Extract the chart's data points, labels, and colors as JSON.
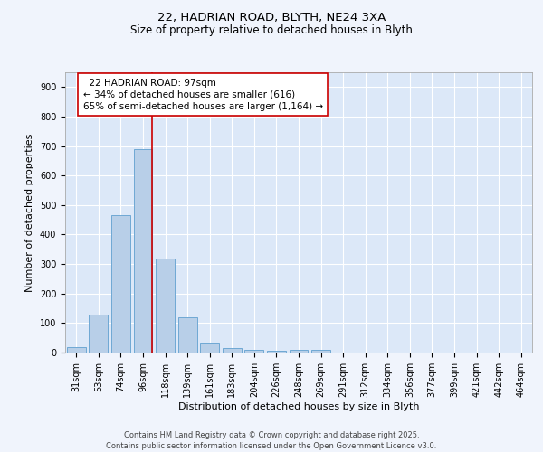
{
  "title_line1": "22, HADRIAN ROAD, BLYTH, NE24 3XA",
  "title_line2": "Size of property relative to detached houses in Blyth",
  "xlabel": "Distribution of detached houses by size in Blyth",
  "ylabel": "Number of detached properties",
  "categories": [
    "31sqm",
    "53sqm",
    "74sqm",
    "96sqm",
    "118sqm",
    "139sqm",
    "161sqm",
    "183sqm",
    "204sqm",
    "226sqm",
    "248sqm",
    "269sqm",
    "291sqm",
    "312sqm",
    "334sqm",
    "356sqm",
    "377sqm",
    "399sqm",
    "421sqm",
    "442sqm",
    "464sqm"
  ],
  "values": [
    17,
    128,
    467,
    690,
    320,
    120,
    35,
    15,
    10,
    5,
    10,
    8,
    0,
    0,
    0,
    0,
    0,
    0,
    0,
    0,
    0
  ],
  "bar_color": "#b8cfe8",
  "bar_edge_color": "#6fa8d4",
  "background_color": "#dce8f8",
  "grid_color": "#ffffff",
  "vline_color": "#cc0000",
  "annotation_text": "  22 HADRIAN ROAD: 97sqm\n← 34% of detached houses are smaller (616)\n65% of semi-detached houses are larger (1,164) →",
  "annotation_box_color": "white",
  "annotation_border_color": "#cc0000",
  "ylim": [
    0,
    950
  ],
  "yticks": [
    0,
    100,
    200,
    300,
    400,
    500,
    600,
    700,
    800,
    900
  ],
  "footer_text": "Contains HM Land Registry data © Crown copyright and database right 2025.\nContains public sector information licensed under the Open Government Licence v3.0.",
  "title_fontsize": 9.5,
  "subtitle_fontsize": 8.5,
  "tick_fontsize": 7,
  "label_fontsize": 8,
  "annotation_fontsize": 7.5,
  "footer_fontsize": 6,
  "fig_bg_color": "#f0f4fc"
}
